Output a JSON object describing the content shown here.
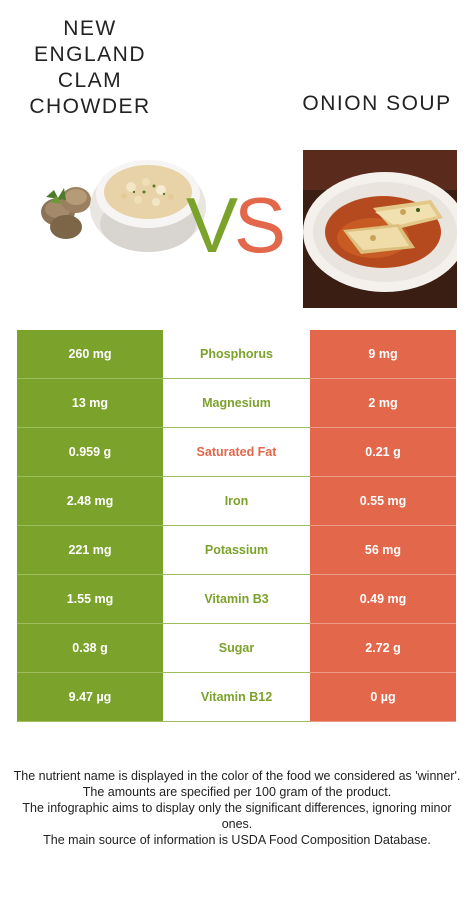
{
  "food_left": {
    "name": "NEW\nENGLAND\nCLAM\nCHOWDER",
    "color": "#7ba22b"
  },
  "food_right": {
    "name": "ONION SOUP",
    "color": "#e2674b"
  },
  "vs": {
    "v": "V",
    "s": "S"
  },
  "rows": [
    {
      "left": "260 mg",
      "nutrient": "Phosphorus",
      "right": "9 mg",
      "winner": "left"
    },
    {
      "left": "13 mg",
      "nutrient": "Magnesium",
      "right": "2 mg",
      "winner": "left"
    },
    {
      "left": "0.959 g",
      "nutrient": "Saturated Fat",
      "right": "0.21 g",
      "winner": "right"
    },
    {
      "left": "2.48 mg",
      "nutrient": "Iron",
      "right": "0.55 mg",
      "winner": "left"
    },
    {
      "left": "221 mg",
      "nutrient": "Potassium",
      "right": "56 mg",
      "winner": "left"
    },
    {
      "left": "1.55 mg",
      "nutrient": "Vitamin B3",
      "right": "0.49 mg",
      "winner": "left"
    },
    {
      "left": "0.38 g",
      "nutrient": "Sugar",
      "right": "2.72 g",
      "winner": "left"
    },
    {
      "left": "9.47 µg",
      "nutrient": "Vitamin B12",
      "right": "0 µg",
      "winner": "left"
    }
  ],
  "footer": {
    "line1": "The nutrient name is displayed in the color of the food we considered as 'winner'.",
    "line2": "The amounts are specified per 100 gram of the product.",
    "line3": "The infographic aims to display only the significant differences, ignoring minor ones.",
    "line4": "The main source of information is USDA Food Composition Database."
  }
}
